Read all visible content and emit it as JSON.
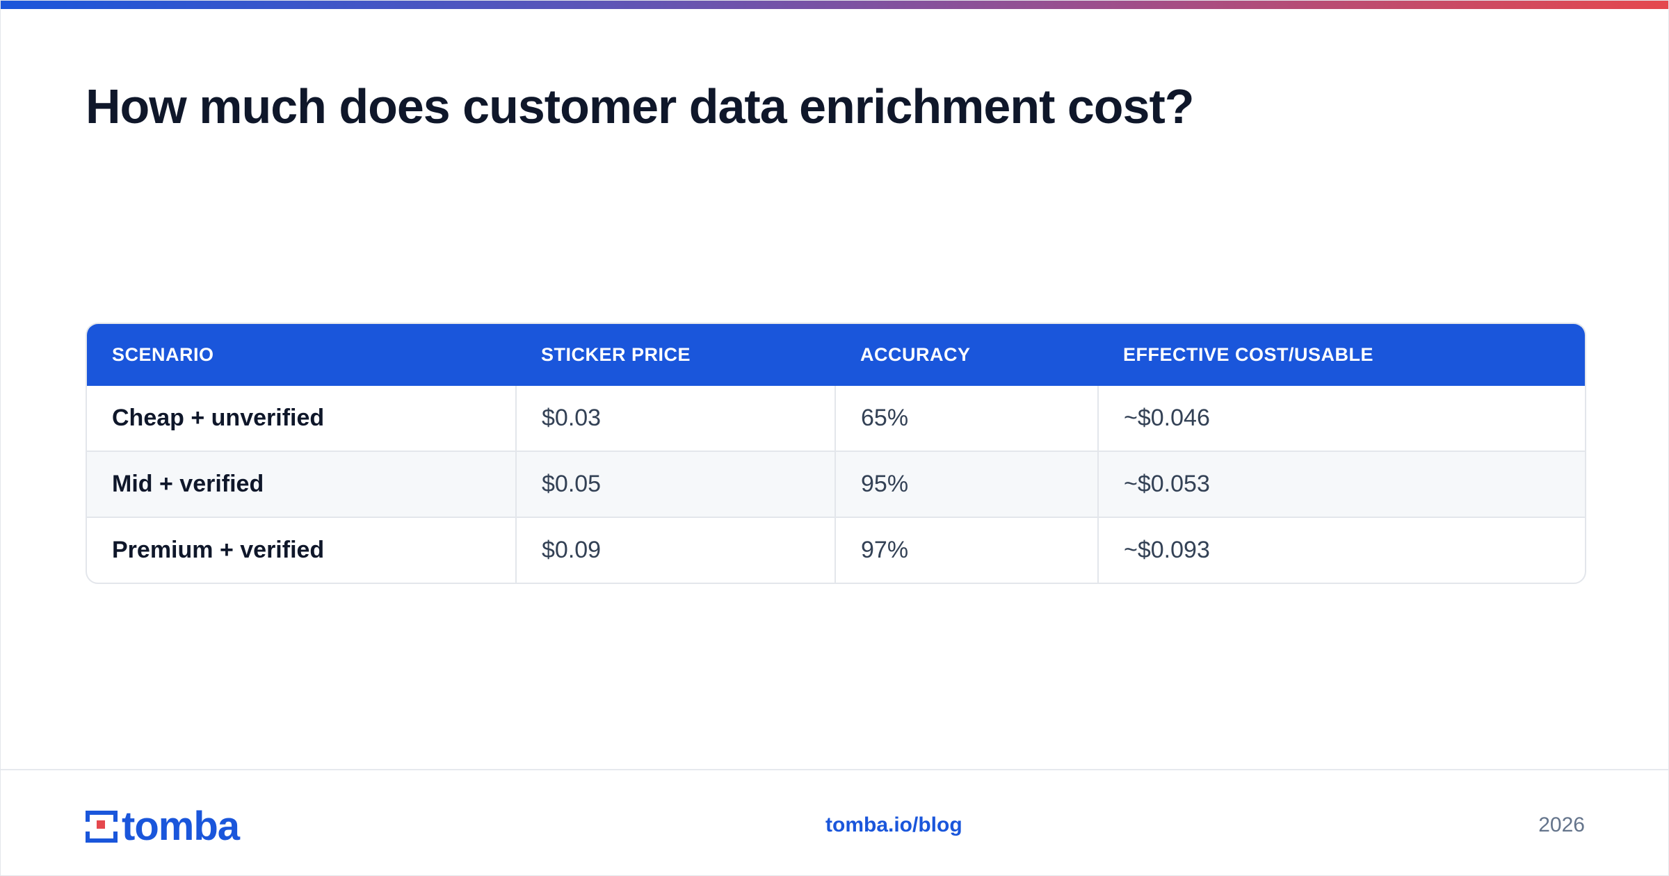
{
  "header": {
    "title": "How much does customer data enrichment cost?"
  },
  "table": {
    "columns": [
      "SCENARIO",
      "STICKER PRICE",
      "ACCURACY",
      "EFFECTIVE COST/USABLE"
    ],
    "rows": [
      [
        "Cheap + unverified",
        "$0.03",
        "65%",
        "~$0.046"
      ],
      [
        "Mid + verified",
        "$0.05",
        "95%",
        "~$0.053"
      ],
      [
        "Premium + verified",
        "$0.09",
        "97%",
        "~$0.093"
      ]
    ]
  },
  "footer": {
    "logo_text": "tomba",
    "link": "tomba.io/blog",
    "year": "2026"
  },
  "colors": {
    "accent": "#1a56db",
    "logo_red": "#e5484d",
    "title": "#0f172a"
  }
}
